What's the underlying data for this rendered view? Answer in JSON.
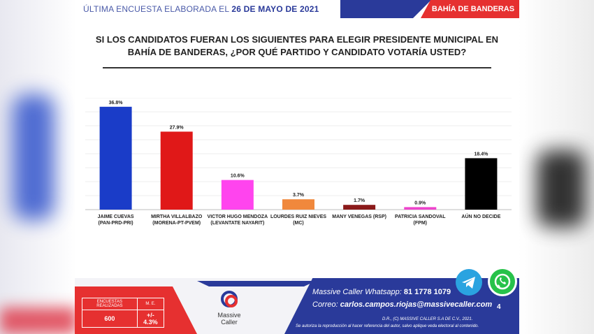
{
  "header": {
    "left_prefix": "ÚLTIMA ENCUESTA ELABORADA EL",
    "left_date": "26 DE MAYO DE 2021",
    "right": "BAHÍA DE BANDERAS"
  },
  "question": "SI LOS CANDIDATOS FUERAN LOS SIGUIENTES PARA ELEGIR PRESIDENTE MUNICIPAL EN BAHÍA DE BANDERAS, ¿POR QUÉ PARTIDO Y CANDIDATO VOTARÍA USTED?",
  "chart_data": {
    "type": "bar",
    "title": "SI LOS CANDIDATOS FUERAN LOS SIGUIENTES PARA ELEGIR PRESIDENTE MUNICIPAL EN BAHÍA DE BANDERAS, ¿POR QUÉ PARTIDO Y CANDIDATO VOTARÍA USTED?",
    "categories": [
      [
        "JAIME CUEVAS",
        "(PAN-PRD-PRI)"
      ],
      [
        "MIRTHA VILLALBAZO",
        "(MORENA-PT-PVEM)"
      ],
      [
        "VICTOR HUGO MENDOZA",
        "(LEVANTATE NAYARIT)"
      ],
      [
        "LOURDES RUIZ NIEVES",
        "(MC)"
      ],
      [
        "MANY VENEGAS (RSP)"
      ],
      [
        "PATRICIA SANDOVAL",
        "(FPM)"
      ],
      [
        "AÚN NO DECIDE"
      ]
    ],
    "values": [
      36.8,
      27.9,
      10.6,
      3.7,
      1.7,
      0.9,
      18.4
    ],
    "value_labels": [
      "36.8%",
      "27.9%",
      "10.6%",
      "3.7%",
      "1.7%",
      "0.9%",
      "18.4%"
    ],
    "colors": [
      "#1a3cc8",
      "#e01818",
      "#ff44ee",
      "#f0883c",
      "#8b1a1a",
      "#ee44cc",
      "#000000"
    ],
    "ylim": [
      0,
      40
    ],
    "grid": true,
    "xlabel": "",
    "ylabel": ""
  },
  "footer": {
    "stats_header_left": "ENCUESTAS REALIZADAS",
    "stats_header_right": "M. E.",
    "stats_value_left": "600",
    "stats_value_right": "+/- 4.3%",
    "logo_line1": "Massive",
    "logo_line2": "Caller",
    "whatsapp_label": "Massive Caller Whatsapp:",
    "whatsapp_number": "81 1778 1079",
    "email_label": "Correo:",
    "email": "carlos.campos.riojas@massivecaller.com",
    "page": "4",
    "legal1": "D.R., (C) MASSIVE CALLER S.A DE C.V., 2021.",
    "legal2": "Se autoriza la reproducción al hacer referencia del autor, salvo aplique veda electoral al contenido."
  },
  "icons": {
    "telegram": "telegram-icon",
    "whatsapp": "whatsapp-icon"
  }
}
